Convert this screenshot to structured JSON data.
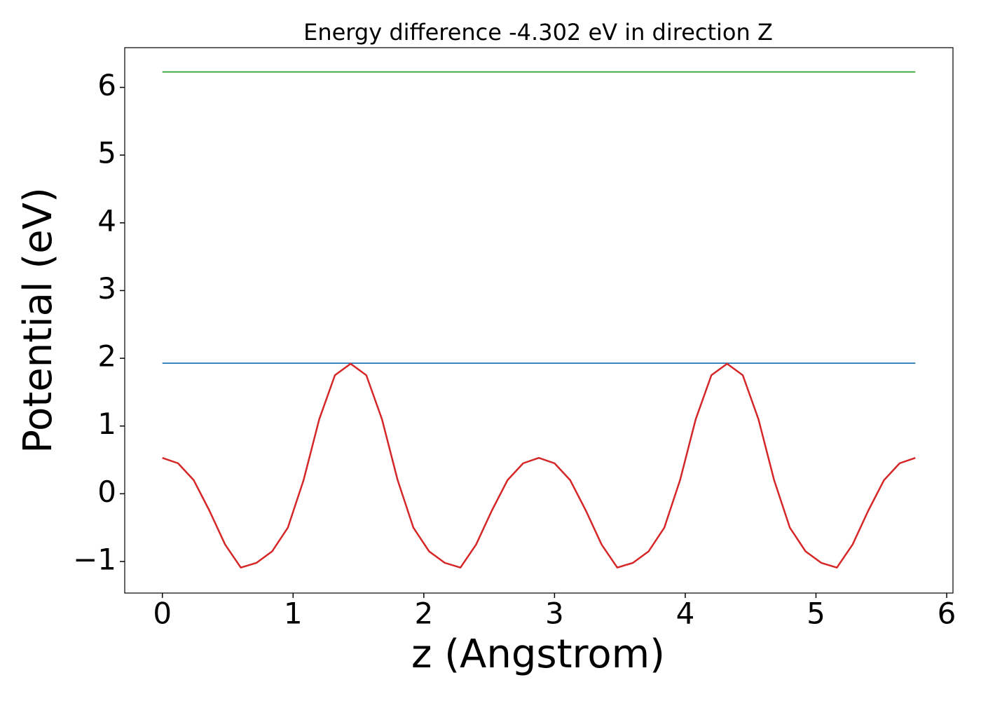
{
  "chart_data": {
    "type": "line",
    "title": "Energy difference -4.302 eV in direction Z",
    "x_label": "z (Angstrom)",
    "y_label": "Potential (eV)",
    "xlim": [
      -0.288,
      6.048
    ],
    "ylim": [
      -1.466,
      6.586
    ],
    "xticks": [
      0,
      1,
      2,
      3,
      4,
      5,
      6
    ],
    "yticks": [
      {
        "value": -1,
        "label": "−1"
      },
      0,
      1,
      2,
      3,
      4,
      5,
      6
    ],
    "series": [
      {
        "color": "#2ca02c",
        "x": [
          0,
          5.76
        ],
        "values": [
          6.228,
          6.228
        ]
      },
      {
        "color": "#1f77b4",
        "x": [
          0,
          5.76
        ],
        "values": [
          1.927,
          1.927
        ]
      },
      {
        "color": "#d62728",
        "x": [
          0,
          0.12,
          0.24,
          0.36,
          0.48,
          0.6,
          0.72,
          0.84,
          0.96,
          1.08,
          1.2,
          1.32,
          1.44,
          1.56,
          1.68,
          1.8,
          1.92,
          2.04,
          2.16,
          2.28,
          2.4,
          2.52,
          2.64,
          2.76,
          2.88,
          3.0,
          3.12,
          3.24,
          3.36,
          3.48,
          3.6,
          3.72,
          3.84,
          3.96,
          4.08,
          4.2,
          4.32,
          4.44,
          4.56,
          4.68,
          4.8,
          4.92,
          5.04,
          5.16,
          5.28,
          5.4,
          5.52,
          5.64,
          5.76
        ],
        "values": [
          0.53,
          0.45,
          0.2,
          -0.25,
          -0.75,
          -1.09,
          -1.02,
          -0.85,
          -0.5,
          0.2,
          1.1,
          1.75,
          1.92,
          1.75,
          1.1,
          0.2,
          -0.5,
          -0.85,
          -1.02,
          -1.09,
          -0.75,
          -0.25,
          0.2,
          0.45,
          0.53,
          0.45,
          0.2,
          -0.25,
          -0.75,
          -1.09,
          -1.02,
          -0.85,
          -0.5,
          0.2,
          1.1,
          1.75,
          1.92,
          1.75,
          1.1,
          0.2,
          -0.5,
          -0.85,
          -1.02,
          -1.09,
          -0.75,
          -0.25,
          0.2,
          0.45,
          0.53
        ]
      }
    ]
  }
}
